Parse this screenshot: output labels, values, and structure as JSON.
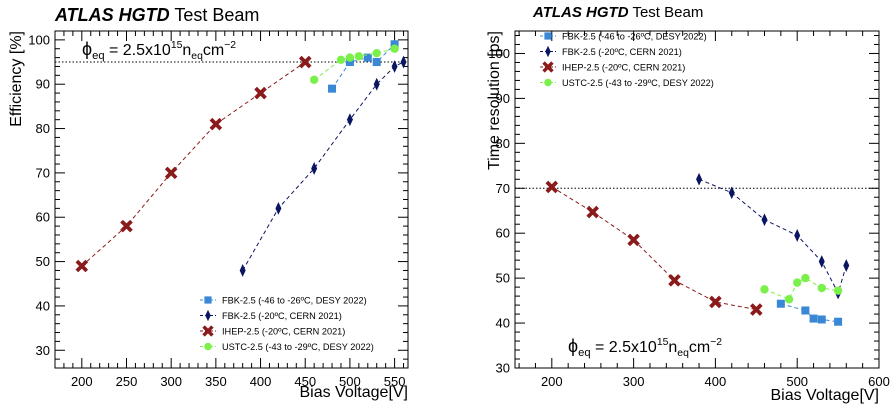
{
  "chart_data": [
    {
      "type": "scatter",
      "title_bold": "ATLAS HGTD",
      "title_rest": "Test Beam",
      "xlabel": "Bias Voltage[V]",
      "ylabel": "Efficiency [%]",
      "xlim": [
        170,
        565
      ],
      "ylim": [
        26,
        102
      ],
      "x_ticks": [
        200,
        250,
        300,
        350,
        400,
        450,
        500,
        550
      ],
      "y_ticks": [
        30,
        40,
        50,
        60,
        70,
        80,
        90,
        100
      ],
      "reference_line_y": 95,
      "annotation": {
        "base": "ϕ",
        "base_sub": "eq",
        "eq": " = 2.5x10",
        "sup": "15",
        "unit": "n",
        "unit_sub": "eq",
        "unit2": "cm",
        "unit2_sup": "−2"
      },
      "legend_position": "bottom-right",
      "series": [
        {
          "name": "FBK-2.5 (-46 to -26ºC, DESY 2022)",
          "color": "#3a87d6",
          "marker": "square",
          "x": [
            480,
            500,
            520,
            530,
            550
          ],
          "y": [
            89,
            95,
            96,
            95,
            99
          ]
        },
        {
          "name": "FBK-2.5 (-20ºC, CERN 2021)",
          "color": "#0b1660",
          "marker": "diamond",
          "x": [
            380,
            420,
            460,
            500,
            530,
            550,
            560
          ],
          "y": [
            48,
            62,
            71,
            82,
            90,
            94,
            95
          ]
        },
        {
          "name": "IHEP-2.5 (-20ºC, CERN 2021)",
          "color": "#8b1a1a",
          "marker": "cross",
          "x": [
            200,
            250,
            300,
            350,
            400,
            450
          ],
          "y": [
            49,
            58,
            70,
            81,
            88,
            95
          ]
        },
        {
          "name": "USTC-2.5 (-43 to -29ºC, DESY 2022)",
          "color": "#7cf04a",
          "marker": "circle",
          "x": [
            460,
            490,
            500,
            510,
            530,
            550
          ],
          "y": [
            91,
            95.5,
            96,
            96.3,
            97,
            98
          ]
        }
      ]
    },
    {
      "type": "scatter",
      "title_bold": "ATLAS  HGTD",
      "title_rest": "Test  Beam",
      "xlabel": "Bias Voltage[V]",
      "ylabel": "Time resolution [ps]",
      "xlim": [
        155,
        600
      ],
      "ylim": [
        30,
        105
      ],
      "x_ticks": [
        200,
        300,
        400,
        500,
        600
      ],
      "y_ticks": [
        30,
        40,
        50,
        60,
        70,
        80,
        90,
        100
      ],
      "reference_line_y": 70,
      "annotation": {
        "base": "ϕ",
        "base_sub": "eq",
        "eq": " = 2.5x10",
        "sup": "15",
        "unit": "n",
        "unit_sub": "eq",
        "unit2": "cm",
        "unit2_sup": "−2"
      },
      "legend_position": "top-left",
      "series": [
        {
          "name": "FBK-2.5 (-46 to -26ºC, DESY 2022)",
          "color": "#3a87d6",
          "marker": "square",
          "x": [
            480,
            510,
            520,
            530,
            550
          ],
          "y": [
            44.3,
            42.8,
            41,
            40.8,
            40.3
          ]
        },
        {
          "name": "FBK-2.5 (-20ºC, CERN 2021)",
          "color": "#0b1660",
          "marker": "diamond",
          "x": [
            380,
            420,
            460,
            500,
            530,
            550,
            560
          ],
          "y": [
            72,
            69,
            63,
            59.5,
            53.7,
            46.7,
            52.8
          ]
        },
        {
          "name": "IHEP-2.5 (-20ºC, CERN 2021)",
          "color": "#8b1a1a",
          "marker": "cross",
          "x": [
            200,
            250,
            300,
            350,
            400,
            450
          ],
          "y": [
            70.3,
            64.7,
            58.5,
            49.5,
            44.7,
            43
          ]
        },
        {
          "name": "USTC-2.5 (-43 to -29ºC, DESY 2022)",
          "color": "#7cf04a",
          "marker": "circle",
          "x": [
            460,
            490,
            500,
            510,
            530,
            550
          ],
          "y": [
            47.5,
            45.3,
            49,
            50,
            47.8,
            47.2
          ]
        }
      ]
    }
  ]
}
